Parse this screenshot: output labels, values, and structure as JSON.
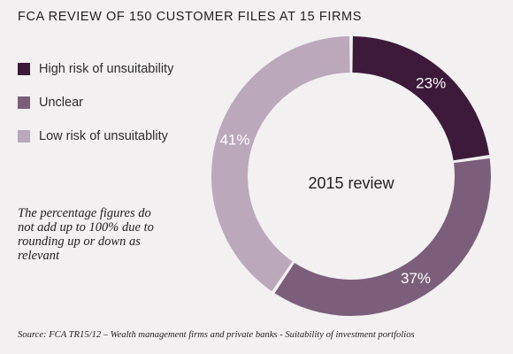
{
  "title": "FCA REVIEW OF 150 CUSTOMER FILES AT 15 FIRMS",
  "legend": [
    {
      "label": "High risk of unsuitability",
      "color": "#3d1a3a"
    },
    {
      "label": "Unclear",
      "color": "#7b5f7a"
    },
    {
      "label": "Low risk of unsuitablity",
      "color": "#bba8bb"
    }
  ],
  "note": "The percentage figures do not add up to 100% due to rounding up or down as relevant",
  "source": "Source: FCA TR15/12 – Wealth management firms and private banks - Suitability of investment portfolios",
  "chart_data": {
    "type": "pie",
    "donut": true,
    "center_label": "2015 review",
    "slices": [
      {
        "name": "High risk of unsuitability",
        "value": 23,
        "label": "23%",
        "color": "#3d1a3a",
        "label_color": "#ffffff"
      },
      {
        "name": "Unclear",
        "value": 37,
        "label": "37%",
        "color": "#7b5f7a",
        "label_color": "#ffffff"
      },
      {
        "name": "Low risk of unsuitablity",
        "value": 41,
        "label": "41%",
        "color": "#bba8bb",
        "label_color": "#ffffff"
      }
    ]
  }
}
